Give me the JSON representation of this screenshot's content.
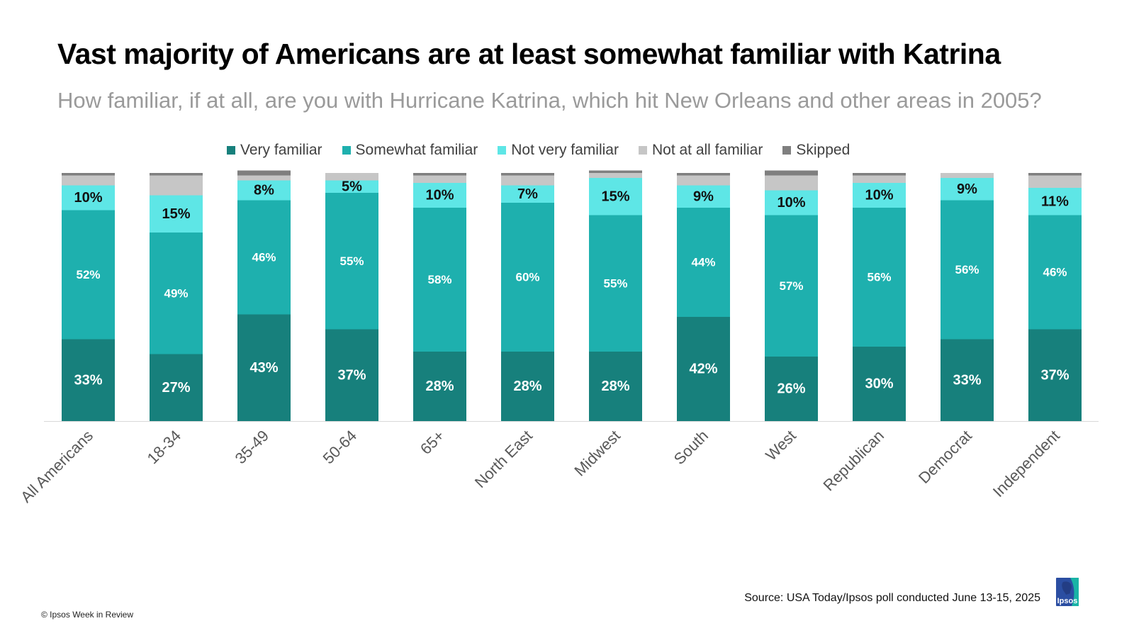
{
  "header": {
    "title": "Vast majority of Americans are at least somewhat familiar with Katrina",
    "subtitle": "How familiar, if at all, are you with Hurricane Katrina, which hit New Orleans and other areas in 2005?"
  },
  "footer": {
    "source": "Source: USA Today/Ipsos poll conducted June 13-15, 2025",
    "copyright": "© Ipsos Week in Review",
    "logo_text": "Ipsos"
  },
  "colors": {
    "very": "#17807c",
    "somewhat": "#1eb0ae",
    "not_very": "#5ee6e6",
    "not_at_all": "#c6c6c6",
    "skipped": "#7f7f7f",
    "logo": "#2b4ea2",
    "logo_accent": "#19b3a6"
  },
  "chart_data": {
    "type": "bar",
    "stacked": true,
    "unit": "%",
    "legend_placement": "top",
    "categories": [
      "All Americans",
      "18-34",
      "35-49",
      "50-64",
      "65+",
      "North East",
      "Midwest",
      "South",
      "West",
      "Republican",
      "Democrat",
      "Independent"
    ],
    "series": [
      {
        "name": "Very familiar",
        "color": "#17807c",
        "values": [
          33,
          27,
          43,
          37,
          28,
          28,
          28,
          42,
          26,
          30,
          33,
          37
        ],
        "labels": [
          "33%",
          "27%",
          "43%",
          "37%",
          "28%",
          "28%",
          "28%",
          "42%",
          "26%",
          "30%",
          "33%",
          "37%"
        ]
      },
      {
        "name": "Somewhat familiar",
        "color": "#1eb0ae",
        "values": [
          52,
          49,
          46,
          55,
          58,
          60,
          55,
          44,
          57,
          56,
          56,
          46
        ],
        "labels": [
          "52%",
          "49%",
          "46%",
          "55%",
          "58%",
          "60%",
          "55%",
          "44%",
          "57%",
          "56%",
          "56%",
          "46%"
        ]
      },
      {
        "name": "Not very familiar",
        "color": "#5ee6e6",
        "values": [
          10,
          15,
          8,
          5,
          10,
          7,
          15,
          9,
          10,
          10,
          9,
          11
        ],
        "labels": [
          "10%",
          "15%",
          "8%",
          "5%",
          "10%",
          "7%",
          "15%",
          "9%",
          "10%",
          "10%",
          "9%",
          "11%"
        ]
      },
      {
        "name": "Not at all familiar",
        "color": "#c6c6c6",
        "values": [
          4,
          8,
          2,
          3,
          3,
          4,
          2,
          4,
          6,
          3,
          2,
          5
        ],
        "labels": []
      },
      {
        "name": "Skipped",
        "color": "#7f7f7f",
        "values": [
          1,
          1,
          2,
          0,
          1,
          1,
          1,
          1,
          2,
          1,
          0,
          1
        ],
        "labels": []
      }
    ],
    "ylim": [
      0,
      100
    ],
    "grid": false
  }
}
